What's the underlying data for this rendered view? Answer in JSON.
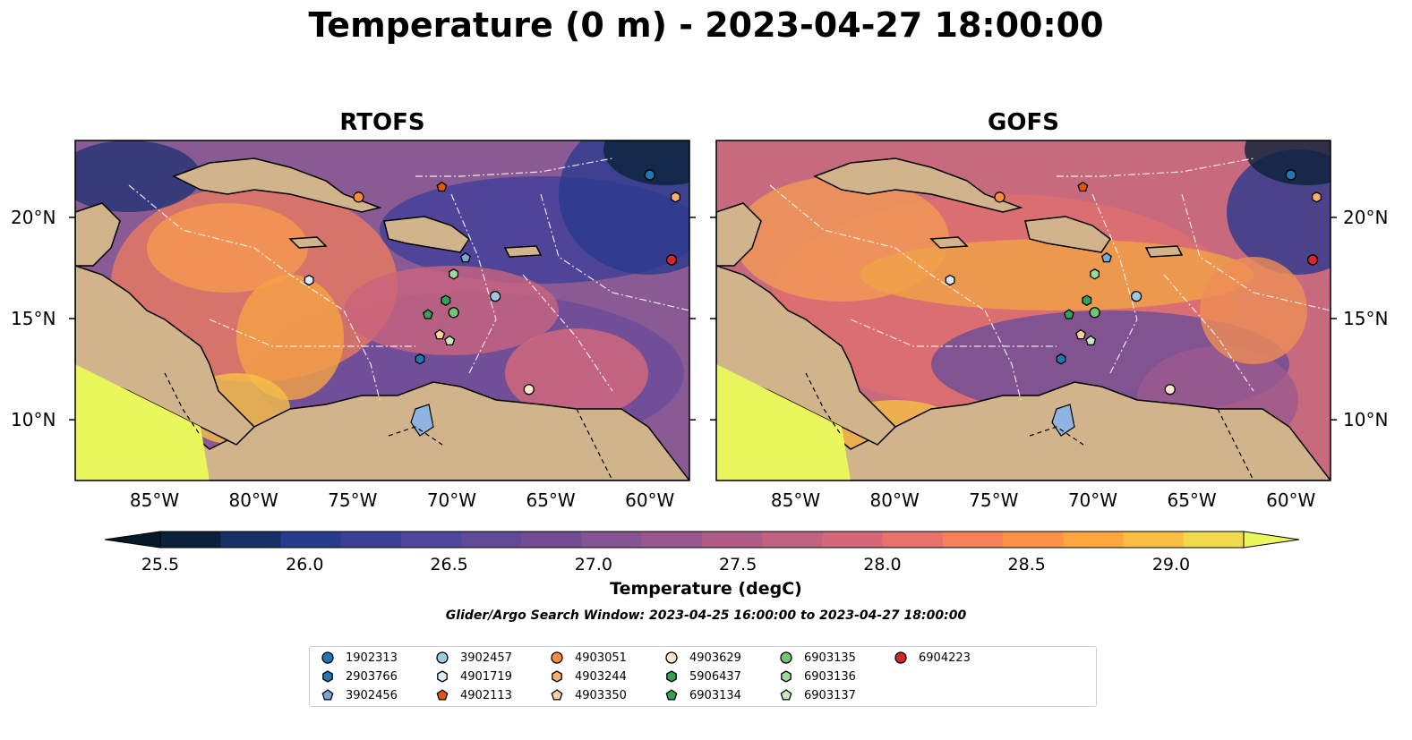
{
  "title": "Temperature (0 m) - 2023-04-27 18:00:00",
  "panels": [
    {
      "title": "RTOFS"
    },
    {
      "title": "GOFS"
    }
  ],
  "lon_ticks": [
    "85°W",
    "80°W",
    "75°W",
    "70°W",
    "65°W",
    "60°W"
  ],
  "lat_ticks": [
    "20°N",
    "15°N",
    "10°N"
  ],
  "colorbar": {
    "label": "Temperature (degC)",
    "ticks": [
      "25.5",
      "26.0",
      "26.5",
      "27.0",
      "27.5",
      "28.0",
      "28.5",
      "29.0"
    ],
    "colors": [
      "#0a2239",
      "#173166",
      "#283c8f",
      "#3c3f98",
      "#4f459a",
      "#614a98",
      "#744e95",
      "#865392",
      "#9a578e",
      "#ad5c88",
      "#c16281",
      "#d56878",
      "#e6726b",
      "#f5805a",
      "#fb924a",
      "#fca63f",
      "#f9bf42",
      "#f1da4c"
    ],
    "under_color": "#06182a",
    "over_color": "#e9f65c"
  },
  "search_window": "Glider/Argo Search Window: 2023-04-25 16:00:00 to 2023-04-27 18:00:00",
  "floats": [
    {
      "id": "1902313",
      "marker": "circle",
      "color": "#1f77b4",
      "lon": -60.0,
      "lat": 22.1
    },
    {
      "id": "2903766",
      "marker": "hexagon",
      "color": "#1f77b4",
      "lon": -71.6,
      "lat": 13.0
    },
    {
      "id": "3902456",
      "marker": "pentagon",
      "color": "#7aa6d6",
      "lon": -69.3,
      "lat": 18.0
    },
    {
      "id": "3902457",
      "marker": "circle",
      "color": "#9ecae1",
      "lon": -67.8,
      "lat": 16.1
    },
    {
      "id": "4901719",
      "marker": "hexagon",
      "color": "#deebf7",
      "lon": -77.2,
      "lat": 16.9
    },
    {
      "id": "4902113",
      "marker": "pentagon",
      "color": "#e6550d",
      "lon": -70.5,
      "lat": 21.5
    },
    {
      "id": "4903051",
      "marker": "circle",
      "color": "#fd8d3c",
      "lon": -74.7,
      "lat": 21.0
    },
    {
      "id": "4903244",
      "marker": "hexagon",
      "color": "#fdae6b",
      "lon": -58.7,
      "lat": 21.0
    },
    {
      "id": "4903350",
      "marker": "pentagon",
      "color": "#fdd0a2",
      "lon": -70.6,
      "lat": 14.2
    },
    {
      "id": "4903629",
      "marker": "circle",
      "color": "#fee6ce",
      "lon": -66.1,
      "lat": 11.5
    },
    {
      "id": "5906437",
      "marker": "hexagon",
      "color": "#31a354",
      "lon": -70.3,
      "lat": 15.9
    },
    {
      "id": "6903134",
      "marker": "pentagon",
      "color": "#31a354",
      "lon": -71.2,
      "lat": 15.2
    },
    {
      "id": "6903135",
      "marker": "circle",
      "color": "#74c476",
      "lon": -69.9,
      "lat": 15.3
    },
    {
      "id": "6903136",
      "marker": "hexagon",
      "color": "#a1d99b",
      "lon": -69.9,
      "lat": 17.2
    },
    {
      "id": "6903137",
      "marker": "pentagon",
      "color": "#c7e9c0",
      "lon": -70.1,
      "lat": 13.9
    },
    {
      "id": "6904223",
      "marker": "circle",
      "color": "#d62728",
      "lon": -58.9,
      "lat": 17.9
    }
  ]
}
